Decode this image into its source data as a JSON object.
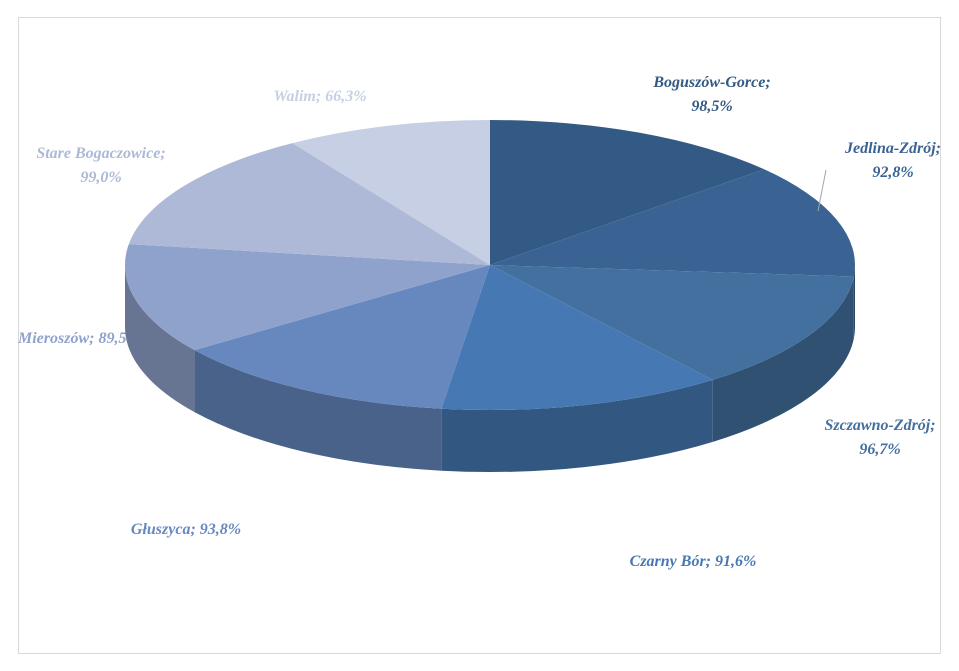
{
  "chart_data": {
    "type": "pie3d",
    "categories": [
      "Boguszów-Gorce",
      "Jedlina-Zdrój",
      "Szczawno-Zdrój",
      "Czarny Bór",
      "Głuszyca",
      "Mieroszów",
      "Stare Bogaczowice",
      "Walim"
    ],
    "values": [
      98.5,
      92.8,
      96.7,
      91.6,
      93.8,
      89.5,
      99.0,
      66.3
    ],
    "value_labels": [
      "Boguszów-Gorce; 98,5%",
      "Jedlina-Zdrój; 92,8%",
      "Szczawno-Zdrój; 96,7%",
      "Czarny Bór; 91,6%",
      "Głuszyca; 93,8%",
      "Mieroszów; 89,5%",
      "Stare Bogaczowice; 99,0%",
      "Walim; 66,3%"
    ],
    "colors": [
      "#335a85",
      "#3a6394",
      "#43709f",
      "#4679b3",
      "#6688bf",
      "#8fa2cb",
      "#adb9d6",
      "#c6cfe3"
    ]
  }
}
